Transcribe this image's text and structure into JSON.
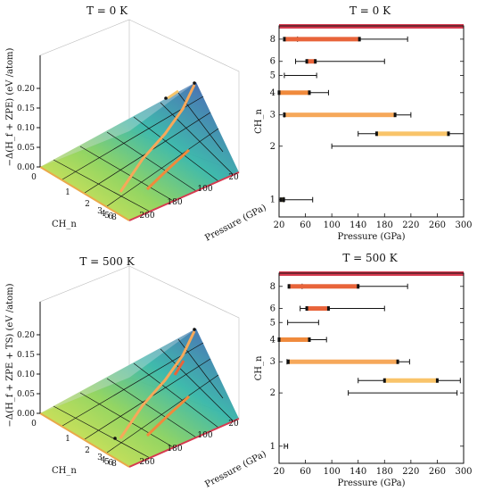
{
  "chart_data": [
    {
      "type": "surface3d",
      "title": "T = 0 K",
      "zlabel": "−Δ(H_f + ZPE) (eV /atom)",
      "xlabel": "Pressure (GPa)",
      "ylabel": "CH_n",
      "z_ticks": [
        "0.00",
        "0.05",
        "0.10",
        "0.15",
        "0.20"
      ],
      "p_ticks": [
        "20",
        "100",
        "180",
        "260"
      ],
      "n_ticks": [
        "0",
        "1",
        "2",
        "3",
        "4",
        "5",
        "6",
        "8"
      ]
    },
    {
      "type": "range-bar",
      "title": "T = 0 K",
      "xlabel": "Pressure (GPa)",
      "ylabel": "CH_n",
      "x_ticks": [
        20,
        60,
        100,
        140,
        180,
        220,
        260,
        300
      ],
      "xlim": [
        20,
        300
      ],
      "y_tick_labels": [
        "1",
        "2",
        "3",
        "4",
        "5",
        "6",
        "8"
      ],
      "rows": [
        {
          "n": "8",
          "y": 8,
          "black": [
            48,
            215
          ],
          "bars": [
            {
              "from": 28,
              "to": 142,
              "color": "#e8643a"
            }
          ]
        },
        {
          "n": "6",
          "y": 6,
          "black": [
            45,
            180
          ],
          "bars": [
            {
              "from": 62,
              "to": 75,
              "color": "#e8643a"
            }
          ]
        },
        {
          "n": "5",
          "y": 5,
          "black": [
            28,
            77
          ],
          "bars": []
        },
        {
          "n": "4",
          "y": 4,
          "black": [
            20,
            95
          ],
          "bars": [
            {
              "from": 20,
              "to": 66,
              "color": "#f08a3c"
            }
          ]
        },
        {
          "n": "3",
          "y": 3,
          "black": [
            28,
            220
          ],
          "bars": [
            {
              "from": 28,
              "to": 196,
              "color": "#f6a85a"
            }
          ]
        },
        {
          "n": "2",
          "y": 2.35,
          "black": [
            140,
            300
          ],
          "bars": [
            {
              "from": 168,
              "to": 277,
              "color": "#f9c46a"
            }
          ]
        },
        {
          "n": "2",
          "y": 2,
          "black": [
            100,
            300
          ],
          "bars": []
        },
        {
          "n": "1",
          "y": 1,
          "black": [
            27,
            71
          ],
          "bars": [
            {
              "from": 23,
              "to": 27,
              "color": "#f9e17a"
            }
          ]
        }
      ]
    },
    {
      "type": "surface3d",
      "title": "T = 500 K",
      "zlabel": "−Δ(H_f + ZPE + TS) (eV /atom)",
      "xlabel": "Pressure (GPa)",
      "ylabel": "CH_n",
      "z_ticks": [
        "0.00",
        "0.05",
        "0.10",
        "0.15",
        "0.20"
      ],
      "p_ticks": [
        "20",
        "100",
        "180",
        "260"
      ],
      "n_ticks": [
        "0",
        "1",
        "2",
        "3",
        "4",
        "5",
        "6",
        "8"
      ]
    },
    {
      "type": "range-bar",
      "title": "T = 500 K",
      "xlabel": "Pressure (GPa)",
      "ylabel": "CH_n",
      "x_ticks": [
        20,
        60,
        100,
        140,
        180,
        220,
        260,
        300
      ],
      "xlim": [
        20,
        300
      ],
      "y_tick_labels": [
        "1",
        "2",
        "3",
        "4",
        "5",
        "6",
        "8"
      ],
      "rows": [
        {
          "n": "8",
          "y": 8,
          "black": [
            55,
            215
          ],
          "bars": [
            {
              "from": 35,
              "to": 140,
              "color": "#e8643a"
            }
          ]
        },
        {
          "n": "6",
          "y": 6,
          "black": [
            52,
            180
          ],
          "bars": [
            {
              "from": 62,
              "to": 95,
              "color": "#e8643a"
            }
          ]
        },
        {
          "n": "5",
          "y": 5,
          "black": [
            33,
            80
          ],
          "bars": []
        },
        {
          "n": "4",
          "y": 4,
          "black": [
            20,
            92
          ],
          "bars": [
            {
              "from": 20,
              "to": 66,
              "color": "#f08a3c"
            }
          ]
        },
        {
          "n": "3",
          "y": 3,
          "black": [
            32,
            218
          ],
          "bars": [
            {
              "from": 34,
              "to": 200,
              "color": "#f6a85a"
            }
          ]
        },
        {
          "n": "2",
          "y": 2.35,
          "black": [
            140,
            295
          ],
          "bars": [
            {
              "from": 180,
              "to": 260,
              "color": "#f9c46a"
            }
          ]
        },
        {
          "n": "2",
          "y": 2,
          "black": [
            125,
            290
          ],
          "bars": []
        },
        {
          "n": "1",
          "y": 1,
          "black": [
            28,
            33
          ],
          "bars": []
        }
      ]
    }
  ],
  "colors": {
    "top_band": "#d63a4f",
    "surface_low": "#f7e84a",
    "surface_mid": "#35b6a8",
    "surface_high": "#4b3b8f"
  }
}
